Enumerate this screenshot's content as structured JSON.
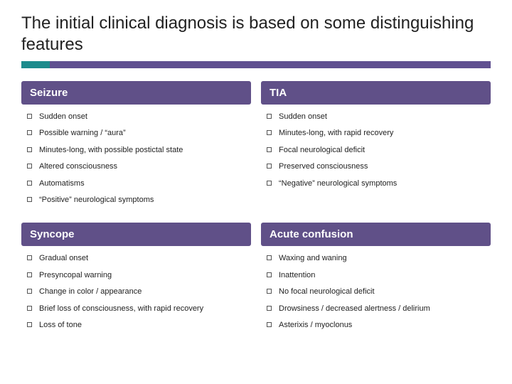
{
  "title": "The initial clinical diagnosis is based on some distinguishing features",
  "accent": {
    "teal": "#1d8b8c",
    "purple": "#605090"
  },
  "panels": {
    "seizure": {
      "heading": "Seizure",
      "items": [
        "Sudden onset",
        "Possible warning / “aura”",
        "Minutes-long, with possible postictal state",
        "Altered consciousness",
        "Automatisms",
        "“Positive” neurological symptoms"
      ]
    },
    "tia": {
      "heading": "TIA",
      "items": [
        "Sudden onset",
        "Minutes-long, with rapid recovery",
        "Focal neurological deficit",
        "Preserved consciousness",
        "“Negative” neurological symptoms"
      ]
    },
    "syncope": {
      "heading": "Syncope",
      "items": [
        "Gradual onset",
        "Presyncopal warning",
        "Change in color / appearance",
        "Brief loss of consciousness, with rapid recovery",
        "Loss of tone"
      ]
    },
    "acute": {
      "heading": "Acute confusion",
      "items": [
        "Waxing and waning",
        "Inattention",
        "No focal neurological deficit",
        "Drowsiness / decreased alertness / delirium",
        "Asterixis / myoclonus"
      ]
    }
  }
}
